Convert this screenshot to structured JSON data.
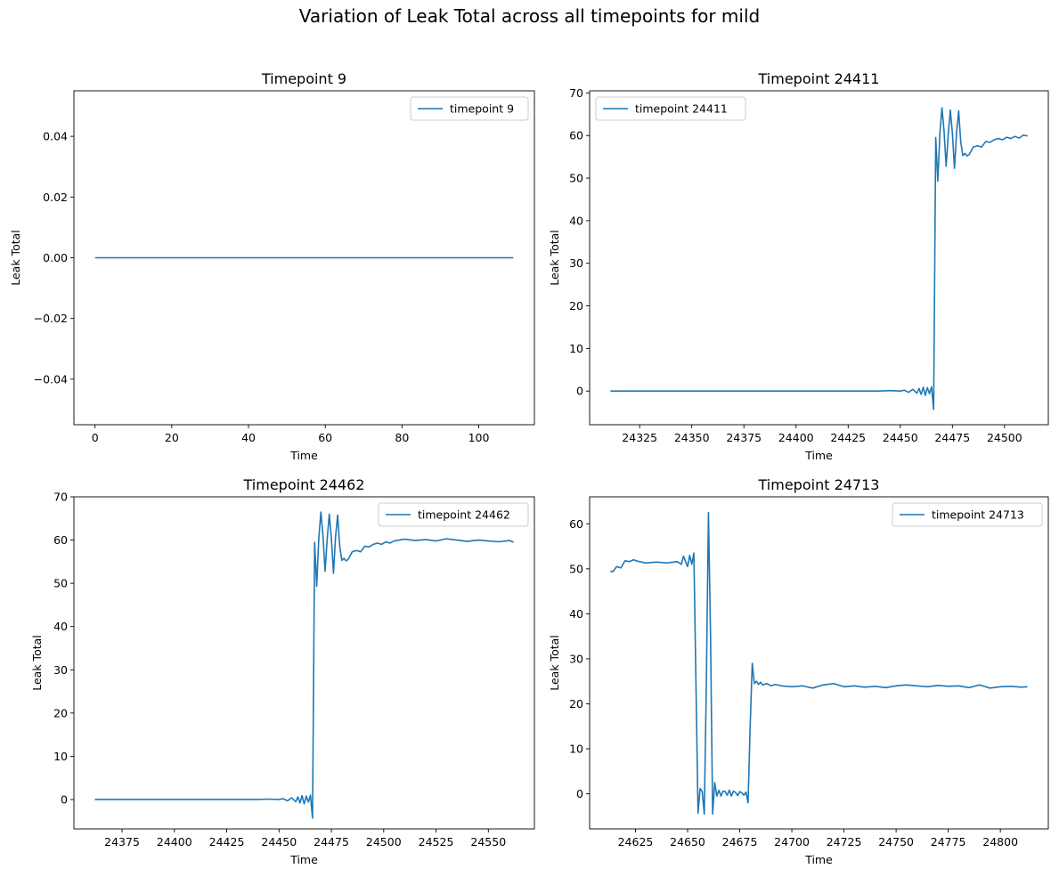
{
  "figure": {
    "suptitle": "Variation of Leak Total across all timepoints for mild"
  },
  "colors": {
    "line": "#1f77b4",
    "axes": "#000000",
    "legend_border": "#cccccc"
  },
  "chart_data": [
    {
      "type": "line",
      "title": "Timepoint 9",
      "xlabel": "Time",
      "ylabel": "Leak Total",
      "xlim": [
        -5.5,
        114.5
      ],
      "ylim": [
        -0.055,
        0.055
      ],
      "xticks": [
        0,
        20,
        40,
        60,
        80,
        100
      ],
      "yticks": [
        -0.04,
        -0.02,
        0.0,
        0.02,
        0.04
      ],
      "ytick_labels": [
        "−0.04",
        "−0.02",
        "0.00",
        "0.02",
        "0.04"
      ],
      "legend_position": "upper right",
      "grid": false,
      "series": [
        {
          "name": "timepoint 9",
          "x": [
            0,
            109
          ],
          "y": [
            0,
            0
          ]
        }
      ]
    },
    {
      "type": "line",
      "title": "Timepoint 24411",
      "xlabel": "Time",
      "ylabel": "Leak Total",
      "xlim": [
        24301,
        24521
      ],
      "ylim": [
        -7.9,
        70.5
      ],
      "xticks": [
        24325,
        24350,
        24375,
        24400,
        24425,
        24450,
        24475,
        24500
      ],
      "yticks": [
        0,
        10,
        20,
        30,
        40,
        50,
        60,
        70
      ],
      "legend_position": "upper left",
      "grid": false,
      "series": [
        {
          "name": "timepoint 24411",
          "x": [
            24311,
            24440,
            24445,
            24450,
            24452,
            24454,
            24456,
            24458,
            24459,
            24460,
            24461,
            24462,
            24463,
            24464,
            24465,
            24466,
            24467,
            24468,
            24469,
            24470,
            24471,
            24472,
            24473,
            24474,
            24475,
            24476,
            24477,
            24478,
            24479,
            24480,
            24481,
            24482,
            24483,
            24485,
            24487,
            24489,
            24491,
            24493,
            24495,
            24497,
            24499,
            24501,
            24503,
            24505,
            24507,
            24509,
            24511
          ],
          "y": [
            0,
            0,
            0.1,
            0,
            0.2,
            -0.3,
            0.4,
            -0.5,
            0.6,
            -0.8,
            0.9,
            -1.0,
            0.8,
            -0.6,
            1.0,
            -4.3,
            59.5,
            49.3,
            60.5,
            66.5,
            61.0,
            52.8,
            60.2,
            66.0,
            60.5,
            52.3,
            60.8,
            65.8,
            58.5,
            55.3,
            55.8,
            55.2,
            55.5,
            57.3,
            57.6,
            57.3,
            58.6,
            58.4,
            59.0,
            59.3,
            59.0,
            59.6,
            59.3,
            59.8,
            59.4,
            60.1,
            59.9
          ]
        }
      ]
    },
    {
      "type": "line",
      "title": "Timepoint 24462",
      "xlabel": "Time",
      "ylabel": "Leak Total",
      "xlim": [
        24352,
        24572
      ],
      "ylim": [
        -6.8,
        70.0
      ],
      "xticks": [
        24375,
        24400,
        24425,
        24450,
        24475,
        24500,
        24525,
        24550
      ],
      "yticks": [
        0,
        10,
        20,
        30,
        40,
        50,
        60,
        70
      ],
      "legend_position": "upper right",
      "grid": false,
      "series": [
        {
          "name": "timepoint 24462",
          "x": [
            24362,
            24440,
            24445,
            24450,
            24452,
            24454,
            24456,
            24458,
            24459,
            24460,
            24461,
            24462,
            24463,
            24464,
            24465,
            24466,
            24467,
            24468,
            24469,
            24470,
            24471,
            24472,
            24473,
            24474,
            24475,
            24476,
            24477,
            24478,
            24479,
            24480,
            24481,
            24482,
            24483,
            24485,
            24487,
            24489,
            24491,
            24493,
            24495,
            24497,
            24499,
            24501,
            24503,
            24505,
            24510,
            24515,
            24520,
            24525,
            24530,
            24535,
            24540,
            24545,
            24550,
            24555,
            24560,
            24562
          ],
          "y": [
            0,
            0,
            0.1,
            0,
            0.2,
            -0.3,
            0.4,
            -0.5,
            0.6,
            -0.8,
            0.9,
            -1.0,
            0.8,
            -0.6,
            1.0,
            -4.3,
            59.5,
            49.3,
            60.5,
            66.5,
            61.0,
            52.8,
            60.2,
            66.0,
            60.5,
            52.3,
            60.8,
            65.8,
            58.5,
            55.3,
            55.8,
            55.2,
            55.5,
            57.3,
            57.6,
            57.3,
            58.6,
            58.4,
            59.0,
            59.3,
            59.0,
            59.6,
            59.3,
            59.8,
            60.2,
            59.9,
            60.1,
            59.8,
            60.3,
            60.0,
            59.7,
            60.0,
            59.8,
            59.6,
            59.9,
            59.5
          ]
        }
      ]
    },
    {
      "type": "line",
      "title": "Timepoint 24713",
      "xlabel": "Time",
      "ylabel": "Leak Total",
      "xlim": [
        24603,
        24823
      ],
      "ylim": [
        -7.8,
        66.0
      ],
      "xticks": [
        24625,
        24650,
        24675,
        24700,
        24725,
        24750,
        24775,
        24800
      ],
      "yticks": [
        0,
        10,
        20,
        30,
        40,
        50,
        60
      ],
      "legend_position": "upper right",
      "grid": false,
      "series": [
        {
          "name": "timepoint 24713",
          "x": [
            24613,
            24614,
            24616,
            24618,
            24620,
            24622,
            24624,
            24626,
            24628,
            24630,
            24635,
            24640,
            24645,
            24647,
            24648,
            24650,
            24651,
            24652,
            24653,
            24655,
            24656,
            24657,
            24658,
            24659,
            24660,
            24661,
            24662,
            24663,
            24664,
            24665,
            24666,
            24667,
            24668,
            24669,
            24670,
            24671,
            24672,
            24673,
            24674,
            24675,
            24676,
            24677,
            24678,
            24679,
            24680,
            24681,
            24682,
            24683,
            24684,
            24685,
            24686,
            24688,
            24690,
            24692,
            24695,
            24700,
            24705,
            24710,
            24715,
            24720,
            24725,
            24730,
            24735,
            24740,
            24745,
            24750,
            24755,
            24760,
            24765,
            24770,
            24775,
            24780,
            24785,
            24790,
            24795,
            24800,
            24805,
            24810,
            24813
          ],
          "y": [
            49.5,
            49.3,
            50.5,
            50.2,
            51.8,
            51.6,
            52.0,
            51.7,
            51.5,
            51.3,
            51.5,
            51.3,
            51.6,
            51.0,
            52.8,
            50.5,
            53.0,
            51.0,
            53.5,
            -4.3,
            1.2,
            0.5,
            -4.5,
            25.0,
            62.5,
            35.0,
            -4.5,
            2.5,
            -0.5,
            0.8,
            -0.5,
            0.6,
            0.5,
            -0.3,
            0.8,
            -0.5,
            0.6,
            0.3,
            -0.4,
            0.5,
            0.2,
            -0.3,
            0.4,
            -2.0,
            15.0,
            29.0,
            24.5,
            25.0,
            24.3,
            24.8,
            24.2,
            24.5,
            24.0,
            24.3,
            24.0,
            23.8,
            24.0,
            23.5,
            24.2,
            24.5,
            23.8,
            24.0,
            23.7,
            23.9,
            23.6,
            24.0,
            24.2,
            24.0,
            23.8,
            24.1,
            23.9,
            24.0,
            23.6,
            24.2,
            23.5,
            23.8,
            23.9,
            23.7,
            23.8
          ]
        }
      ]
    }
  ]
}
